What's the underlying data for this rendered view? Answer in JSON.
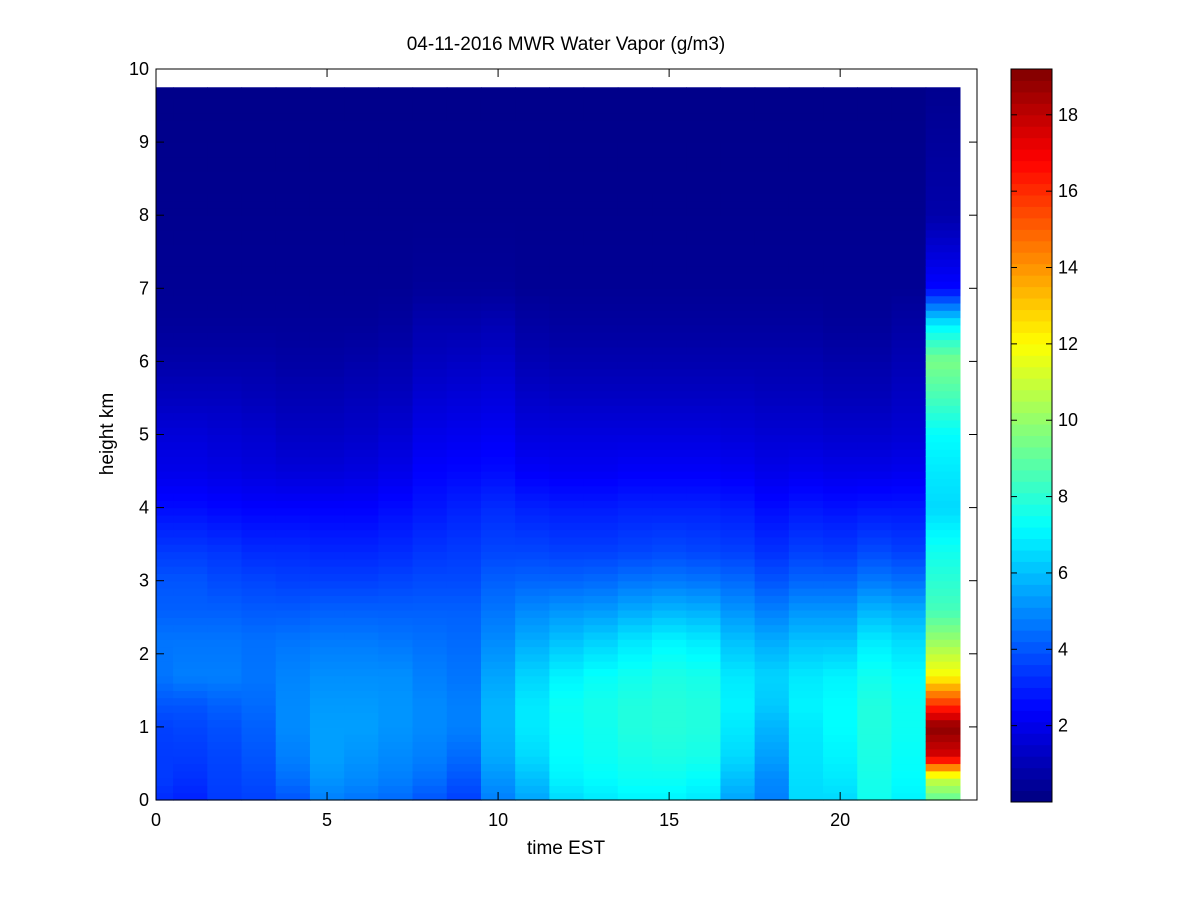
{
  "chart_data": {
    "type": "heatmap",
    "title": "04-11-2016 MWR Water Vapor (g/m3)",
    "xlabel": "time EST",
    "ylabel": "height km",
    "xlim": [
      0,
      24
    ],
    "ylim": [
      0,
      10
    ],
    "x_ticks": [
      "0",
      "5",
      "10",
      "15",
      "20"
    ],
    "y_ticks": [
      "0",
      "1",
      "2",
      "3",
      "4",
      "5",
      "6",
      "7",
      "8",
      "9",
      "10"
    ],
    "colorbar": {
      "range": [
        0,
        19.2
      ],
      "colormap": "jet",
      "ticks": [
        "2",
        "4",
        "6",
        "8",
        "10",
        "12",
        "14",
        "16",
        "18"
      ]
    },
    "data_extent": {
      "x": [
        0,
        23.5
      ],
      "y": [
        0,
        9.75
      ]
    },
    "time_bins": [
      0.25,
      1,
      2,
      3,
      4,
      5,
      6,
      7,
      8,
      9,
      10,
      11,
      12,
      13,
      14,
      15,
      16,
      17,
      18,
      19,
      20,
      21,
      22,
      23
    ],
    "time_bin_edges": [
      0,
      0.5,
      1.5,
      2.5,
      3.5,
      4.5,
      5.5,
      6.5,
      7.5,
      8.5,
      9.5,
      10.5,
      11.5,
      12.5,
      13.5,
      14.5,
      15.5,
      16.5,
      17.5,
      18.5,
      19.5,
      20.5,
      21.5,
      22.5,
      23.5
    ],
    "profile_keys_km": [
      0,
      0.3,
      0.6,
      1.0,
      1.3,
      1.7,
      2.2,
      2.6,
      3.0,
      3.4,
      4.0,
      4.5,
      5.0,
      5.5,
      6.0,
      6.5,
      7.0,
      8.0,
      9.75
    ],
    "profiles_gm3": [
      [
        3.2,
        3.5,
        3.5,
        3.6,
        4.0,
        4.6,
        4.6,
        4.2,
        4.0,
        3.5,
        2.6,
        2.0,
        1.7,
        1.2,
        0.8,
        0.5,
        0.4,
        0.3,
        0.2
      ],
      [
        3.0,
        3.3,
        3.5,
        3.7,
        4.0,
        4.8,
        4.6,
        4.2,
        4.0,
        3.5,
        2.6,
        2.0,
        1.7,
        1.2,
        0.8,
        0.5,
        0.4,
        0.3,
        0.2
      ],
      [
        3.5,
        3.6,
        3.7,
        3.9,
        4.2,
        4.8,
        4.6,
        4.2,
        3.8,
        3.4,
        2.5,
        1.9,
        1.6,
        1.2,
        0.8,
        0.5,
        0.4,
        0.3,
        0.2
      ],
      [
        3.6,
        3.8,
        4.0,
        4.2,
        4.4,
        4.6,
        4.5,
        4.1,
        3.7,
        3.2,
        2.4,
        1.8,
        1.5,
        1.1,
        0.8,
        0.5,
        0.4,
        0.3,
        0.2
      ],
      [
        4.0,
        4.5,
        4.8,
        5.0,
        5.0,
        4.9,
        4.6,
        4.1,
        3.6,
        3.2,
        2.4,
        1.7,
        1.3,
        1.0,
        0.7,
        0.5,
        0.4,
        0.3,
        0.2
      ],
      [
        4.8,
        5.2,
        5.4,
        5.4,
        5.3,
        5.1,
        4.7,
        4.2,
        3.6,
        3.1,
        2.4,
        1.7,
        1.3,
        1.0,
        0.7,
        0.5,
        0.4,
        0.3,
        0.2
      ],
      [
        4.6,
        5.0,
        5.2,
        5.4,
        5.3,
        5.1,
        4.7,
        4.2,
        3.6,
        3.1,
        2.4,
        1.8,
        1.4,
        1.1,
        0.8,
        0.5,
        0.4,
        0.3,
        0.2
      ],
      [
        4.4,
        4.8,
        5.0,
        5.2,
        5.2,
        5.1,
        4.6,
        4.2,
        3.7,
        3.2,
        2.6,
        2.0,
        1.6,
        1.2,
        0.9,
        0.6,
        0.4,
        0.3,
        0.2
      ],
      [
        4.0,
        4.5,
        4.8,
        5.0,
        5.0,
        4.8,
        4.5,
        4.2,
        3.8,
        3.4,
        2.8,
        2.4,
        2.0,
        1.6,
        1.2,
        0.9,
        0.5,
        0.3,
        0.2
      ],
      [
        3.6,
        4.0,
        4.4,
        4.8,
        4.8,
        4.6,
        4.4,
        4.2,
        3.8,
        3.5,
        3.0,
        2.5,
        2.1,
        1.7,
        1.3,
        0.9,
        0.5,
        0.3,
        0.2
      ],
      [
        4.8,
        5.2,
        5.6,
        5.8,
        5.8,
        5.5,
        5.0,
        4.6,
        4.2,
        3.7,
        3.2,
        2.6,
        2.2,
        1.8,
        1.4,
        1.0,
        0.5,
        0.3,
        0.2
      ],
      [
        5.5,
        6.0,
        6.5,
        6.8,
        6.8,
        6.4,
        5.6,
        5.0,
        4.3,
        3.7,
        3.0,
        2.3,
        1.8,
        1.4,
        1.0,
        0.7,
        0.4,
        0.3,
        0.2
      ],
      [
        6.5,
        7.0,
        7.2,
        7.3,
        7.4,
        7.0,
        6.0,
        5.2,
        4.3,
        3.6,
        2.9,
        2.2,
        1.8,
        1.3,
        0.9,
        0.6,
        0.4,
        0.3,
        0.2
      ],
      [
        6.8,
        7.2,
        7.4,
        7.5,
        7.6,
        7.3,
        6.3,
        5.3,
        4.4,
        3.6,
        2.9,
        2.2,
        1.8,
        1.3,
        0.9,
        0.6,
        0.4,
        0.3,
        0.2
      ],
      [
        7.0,
        7.4,
        7.6,
        7.8,
        7.8,
        7.5,
        6.7,
        5.6,
        4.6,
        3.7,
        3.0,
        2.3,
        1.8,
        1.3,
        0.9,
        0.6,
        0.4,
        0.3,
        0.2
      ],
      [
        7.0,
        7.4,
        7.7,
        7.9,
        7.9,
        7.7,
        7.0,
        5.8,
        4.7,
        3.8,
        3.0,
        2.3,
        1.8,
        1.3,
        0.9,
        0.6,
        0.4,
        0.3,
        0.2
      ],
      [
        6.8,
        7.2,
        7.6,
        7.8,
        7.8,
        7.6,
        6.8,
        5.7,
        4.6,
        3.7,
        3.0,
        2.3,
        1.8,
        1.3,
        0.9,
        0.6,
        0.4,
        0.3,
        0.2
      ],
      [
        5.5,
        6.0,
        6.5,
        6.8,
        7.0,
        6.8,
        6.0,
        5.2,
        4.4,
        3.6,
        2.9,
        2.2,
        1.7,
        1.3,
        0.9,
        0.6,
        0.4,
        0.3,
        0.2
      ],
      [
        4.8,
        5.0,
        5.4,
        5.8,
        6.2,
        6.4,
        5.6,
        4.8,
        4.0,
        3.3,
        2.6,
        2.0,
        1.6,
        1.2,
        0.9,
        0.6,
        0.4,
        0.3,
        0.2
      ],
      [
        6.5,
        6.6,
        6.7,
        6.8,
        7.0,
        6.8,
        6.0,
        5.2,
        4.3,
        3.6,
        2.8,
        2.1,
        1.6,
        1.2,
        0.9,
        0.6,
        0.4,
        0.3,
        0.2
      ],
      [
        6.5,
        6.8,
        7.0,
        7.2,
        7.2,
        7.0,
        6.0,
        5.2,
        4.3,
        3.5,
        2.7,
        2.0,
        1.5,
        1.1,
        0.8,
        0.5,
        0.4,
        0.3,
        0.2
      ],
      [
        7.5,
        7.6,
        7.7,
        7.8,
        7.8,
        7.5,
        6.8,
        5.8,
        4.7,
        3.8,
        2.8,
        2.0,
        1.5,
        1.1,
        0.8,
        0.5,
        0.4,
        0.3,
        0.2
      ],
      [
        7.0,
        7.2,
        7.3,
        7.4,
        7.4,
        7.2,
        6.5,
        5.6,
        4.5,
        3.6,
        2.8,
        2.1,
        1.6,
        1.3,
        1.0,
        0.7,
        0.4,
        0.3,
        0.2
      ],
      [
        9.0,
        11.0,
        17.5,
        19.0,
        16.0,
        12.0,
        10.0,
        8.5,
        8.0,
        7.5,
        6.5,
        6.8,
        7.2,
        8.5,
        9.5,
        7.0,
        2.5,
        0.8,
        0.3
      ]
    ]
  }
}
